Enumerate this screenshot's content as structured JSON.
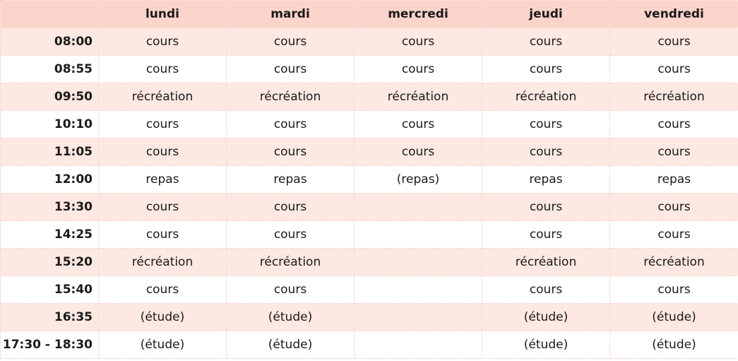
{
  "header": {
    "days": [
      "lundi",
      "mardi",
      "mercredi",
      "jeudi",
      "vendredi"
    ]
  },
  "rows": [
    {
      "time": "08:00",
      "cells": [
        "cours",
        "cours",
        "cours",
        "cours",
        "cours"
      ]
    },
    {
      "time": "08:55",
      "cells": [
        "cours",
        "cours",
        "cours",
        "cours",
        "cours"
      ]
    },
    {
      "time": "09:50",
      "cells": [
        "récréation",
        "récréation",
        "récréation",
        "récréation",
        "récréation"
      ]
    },
    {
      "time": "10:10",
      "cells": [
        "cours",
        "cours",
        "cours",
        "cours",
        "cours"
      ]
    },
    {
      "time": "11:05",
      "cells": [
        "cours",
        "cours",
        "cours",
        "cours",
        "cours"
      ]
    },
    {
      "time": "12:00",
      "cells": [
        "repas",
        "repas",
        "(repas)",
        "repas",
        "repas"
      ]
    },
    {
      "time": "13:30",
      "cells": [
        "cours",
        "cours",
        "",
        "cours",
        "cours"
      ]
    },
    {
      "time": "14:25",
      "cells": [
        "cours",
        "cours",
        "",
        "cours",
        "cours"
      ]
    },
    {
      "time": "15:20",
      "cells": [
        "récréation",
        "récréation",
        "",
        "récréation",
        "récréation"
      ]
    },
    {
      "time": "15:40",
      "cells": [
        "cours",
        "cours",
        "",
        "cours",
        "cours"
      ]
    },
    {
      "time": "16:35",
      "cells": [
        "(étude)",
        "(étude)",
        "",
        "(étude)",
        "(étude)"
      ]
    },
    {
      "time": "17:30 - 18:30",
      "cells": [
        "(étude)",
        "(étude)",
        "",
        "(étude)",
        "(étude)"
      ]
    }
  ],
  "colors": {
    "header_bg": "#fbd4cc",
    "stripe_bg": "#fde8e2",
    "border": "#f2c2b8"
  }
}
